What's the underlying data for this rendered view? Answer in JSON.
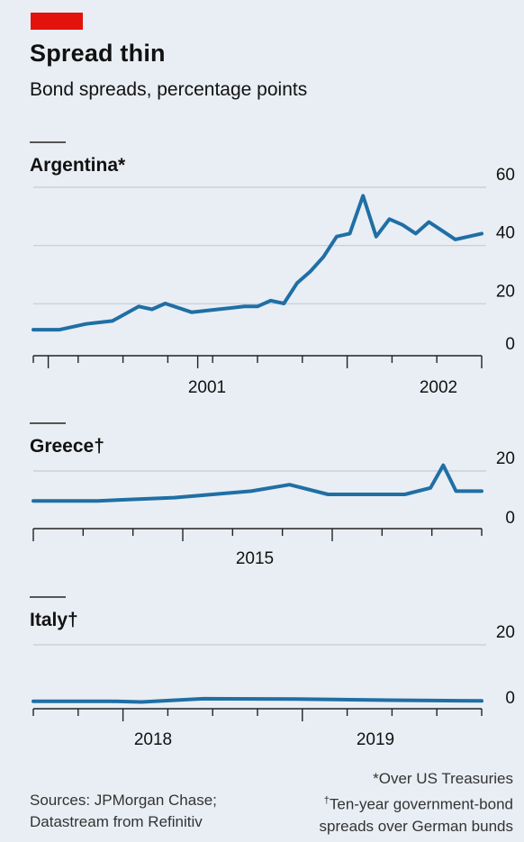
{
  "header": {
    "title": "Spread thin",
    "subtitle": "Bond spreads, percentage points"
  },
  "colors": {
    "accent": "#e3120b",
    "line": "#1f6fa5",
    "grid": "#c8d0d9",
    "background": "#e9eef4"
  },
  "chart_data": [
    {
      "type": "line",
      "title": "Argentina*",
      "ylim": [
        0,
        60
      ],
      "yticks": [
        "0",
        "20",
        "40",
        "60"
      ],
      "xtick_labels": [
        "2001",
        "2002"
      ],
      "x_range": [
        "2000-01",
        "2002-11"
      ],
      "grid": true,
      "series": [
        {
          "x": [
            "2000-01",
            "2000-03",
            "2000-05",
            "2000-07",
            "2000-09",
            "2000-10",
            "2000-11",
            "2001-01",
            "2001-03",
            "2001-05",
            "2001-06",
            "2001-07",
            "2001-08",
            "2001-09",
            "2001-10",
            "2001-11",
            "2001-12",
            "2002-01",
            "2002-02",
            "2002-03",
            "2002-04",
            "2002-05",
            "2002-06",
            "2002-07",
            "2002-08",
            "2002-09",
            "2002-10",
            "2002-11"
          ],
          "values": [
            8,
            8,
            10,
            11,
            16,
            15,
            17,
            14,
            15,
            16,
            16,
            18,
            17,
            24,
            28,
            33,
            40,
            41,
            54,
            40,
            46,
            44,
            41,
            45,
            42,
            39,
            40,
            41
          ]
        }
      ]
    },
    {
      "type": "line",
      "title": "Greece†",
      "ylim": [
        0,
        20
      ],
      "yticks": [
        "0",
        "20"
      ],
      "xtick_labels": [
        "2015"
      ],
      "x_range": [
        "2014-01",
        "2016-12"
      ],
      "grid": true,
      "series": [
        {
          "x": [
            "2014-01",
            "2014-06",
            "2014-12",
            "2015-03",
            "2015-06",
            "2015-09",
            "2015-12",
            "2016-03",
            "2016-06",
            "2016-08",
            "2016-09",
            "2016-10",
            "2016-11",
            "2016-12"
          ],
          "values": [
            8,
            8,
            9,
            10,
            11,
            13,
            10,
            10,
            10,
            12,
            19,
            11,
            11,
            11
          ]
        }
      ]
    },
    {
      "type": "line",
      "title": "Italy†",
      "ylim": [
        0,
        20
      ],
      "yticks": [
        "0",
        "20"
      ],
      "xtick_labels": [
        "2018",
        "2019"
      ],
      "x_range": [
        "2017-07",
        "2019-12"
      ],
      "grid": true,
      "series": [
        {
          "x": [
            "2017-07",
            "2017-12",
            "2018-02",
            "2018-06",
            "2018-12",
            "2019-06",
            "2019-12"
          ],
          "values": [
            1.6,
            1.6,
            1.4,
            2.3,
            2.2,
            1.9,
            1.7
          ]
        }
      ]
    }
  ],
  "footnotes": {
    "sources_line1": "Sources: JPMorgan Chase;",
    "sources_line2": "Datastream from Refinitiv",
    "note1": "*Over US Treasuries",
    "note2_mark": "†",
    "note2_line1": "Ten-year government-bond",
    "note2_line2": "spreads over German bunds"
  }
}
